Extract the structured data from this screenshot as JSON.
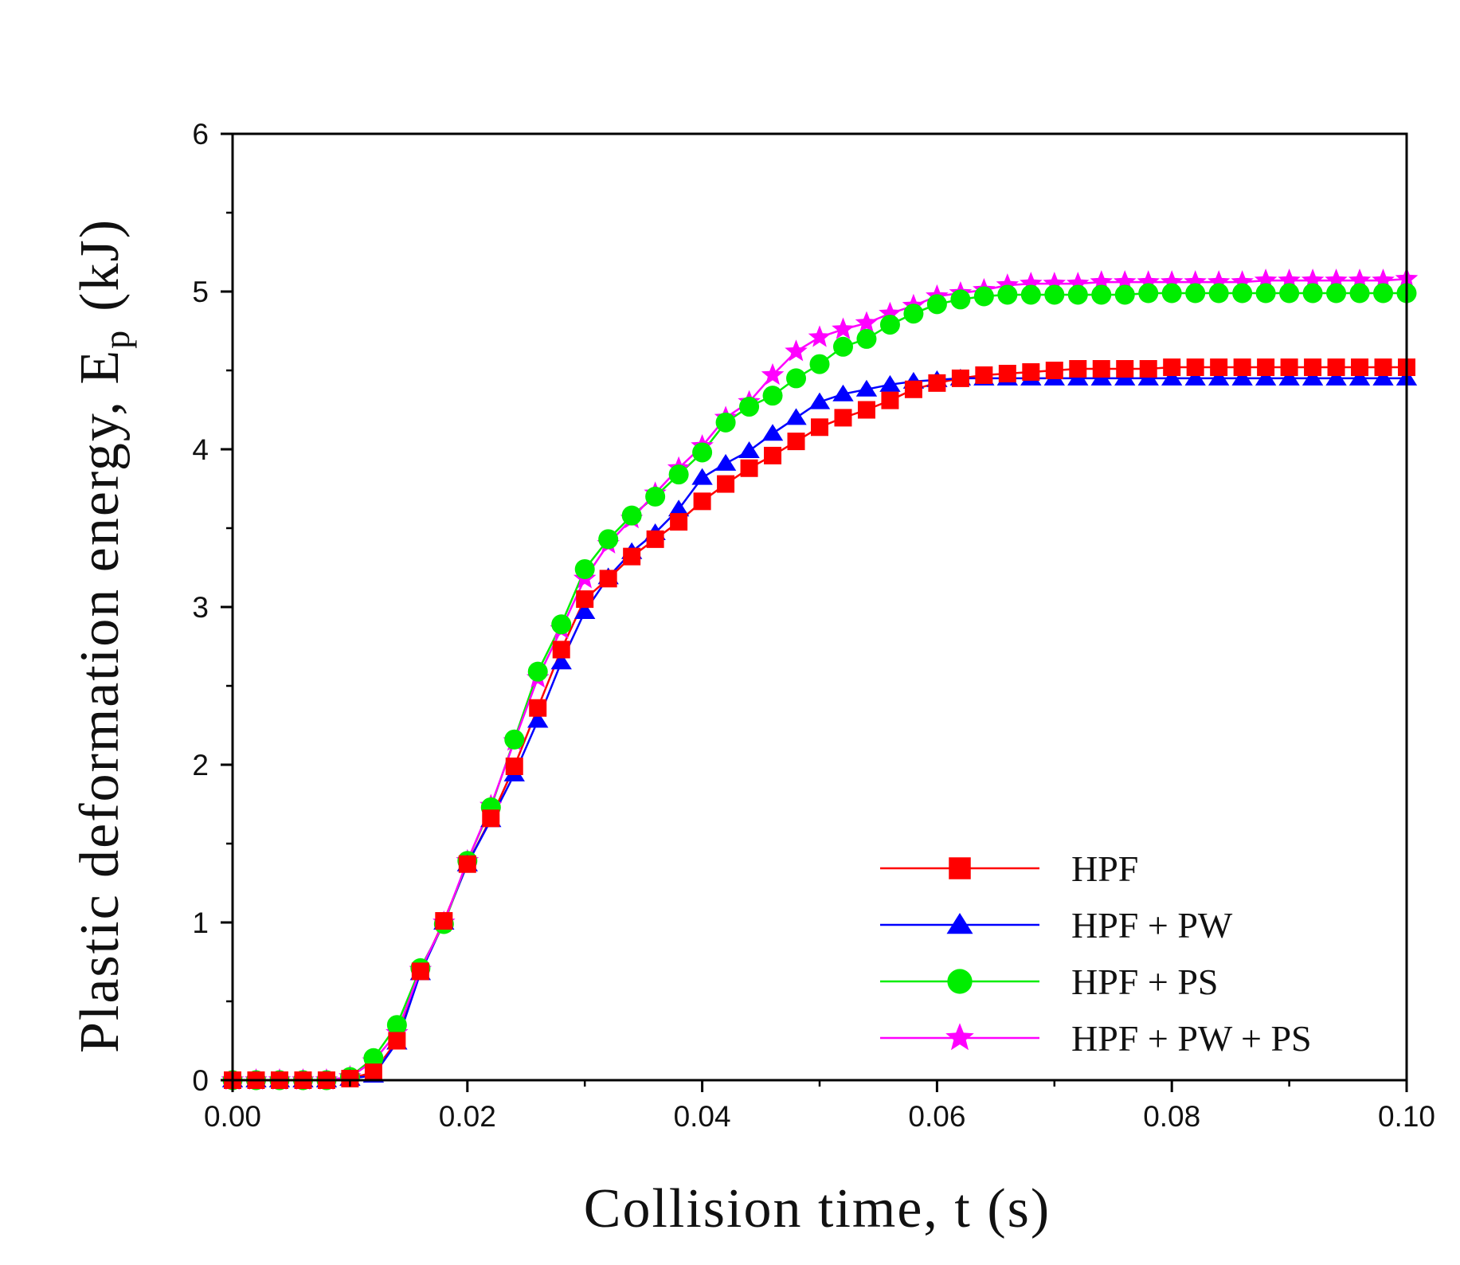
{
  "chart_data": {
    "type": "scatter",
    "title": "",
    "xlabel": "Collision time, t (s)",
    "ylabel_main": "Plastic deformation energy, E",
    "ylabel_sub": "p",
    "ylabel_unit": "(kJ)",
    "xlim": [
      0,
      0.1
    ],
    "ylim": [
      0,
      6
    ],
    "xticks": [
      0,
      0.02,
      0.04,
      0.06,
      0.08,
      0.1
    ],
    "xtick_labels": [
      "0.00",
      "0.02",
      "0.04",
      "0.06",
      "0.08",
      "0.10"
    ],
    "yticks": [
      0,
      1,
      2,
      3,
      4,
      5,
      6
    ],
    "ytick_labels": [
      "0",
      "1",
      "2",
      "3",
      "4",
      "5",
      "6"
    ],
    "grid": false,
    "legend_position": "bottom-right",
    "x": [
      0,
      0.002,
      0.004,
      0.006,
      0.008,
      0.01,
      0.012,
      0.014,
      0.016,
      0.018,
      0.02,
      0.022,
      0.024,
      0.026,
      0.028,
      0.03,
      0.032,
      0.034,
      0.036,
      0.038,
      0.04,
      0.042,
      0.044,
      0.046,
      0.048,
      0.05,
      0.052,
      0.054,
      0.056,
      0.058,
      0.06,
      0.062,
      0.064,
      0.066,
      0.068,
      0.07,
      0.072,
      0.074,
      0.076,
      0.078,
      0.08,
      0.082,
      0.084,
      0.086,
      0.088,
      0.09,
      0.092,
      0.094,
      0.096,
      0.098,
      0.1
    ],
    "series": [
      {
        "name": "HPF",
        "color": "#ff0000",
        "marker": "square",
        "values": [
          0,
          0,
          0,
          0,
          0,
          0.01,
          0.05,
          0.25,
          0.69,
          1.01,
          1.37,
          1.66,
          1.99,
          2.36,
          2.73,
          3.05,
          3.18,
          3.32,
          3.43,
          3.54,
          3.67,
          3.78,
          3.88,
          3.96,
          4.05,
          4.14,
          4.2,
          4.25,
          4.31,
          4.38,
          4.42,
          4.45,
          4.47,
          4.48,
          4.49,
          4.5,
          4.51,
          4.51,
          4.51,
          4.51,
          4.52,
          4.52,
          4.52,
          4.52,
          4.52,
          4.52,
          4.52,
          4.52,
          4.52,
          4.52,
          4.52
        ]
      },
      {
        "name": "HPF + PW",
        "color": "#0000ff",
        "marker": "triangle",
        "values": [
          0,
          0,
          0,
          0,
          0,
          0.01,
          0.03,
          0.24,
          0.68,
          1.0,
          1.37,
          1.65,
          1.94,
          2.28,
          2.65,
          2.97,
          3.19,
          3.35,
          3.47,
          3.62,
          3.82,
          3.91,
          3.99,
          4.1,
          4.2,
          4.3,
          4.35,
          4.38,
          4.41,
          4.43,
          4.44,
          4.45,
          4.45,
          4.45,
          4.45,
          4.45,
          4.45,
          4.45,
          4.45,
          4.45,
          4.45,
          4.45,
          4.45,
          4.45,
          4.45,
          4.45,
          4.45,
          4.45,
          4.45,
          4.45,
          4.45
        ]
      },
      {
        "name": "HPF + PS",
        "color": "#00ee00",
        "marker": "circle",
        "values": [
          0,
          0,
          0,
          0,
          0,
          0.02,
          0.14,
          0.35,
          0.71,
          0.99,
          1.39,
          1.73,
          2.16,
          2.59,
          2.89,
          3.24,
          3.43,
          3.58,
          3.7,
          3.84,
          3.98,
          4.17,
          4.27,
          4.34,
          4.45,
          4.54,
          4.65,
          4.7,
          4.79,
          4.86,
          4.92,
          4.95,
          4.97,
          4.98,
          4.98,
          4.98,
          4.98,
          4.98,
          4.98,
          4.99,
          4.99,
          4.99,
          4.99,
          4.99,
          4.99,
          4.99,
          4.99,
          4.99,
          4.99,
          4.99,
          4.99
        ]
      },
      {
        "name": "HPF + PW + PS",
        "color": "#ff00ff",
        "marker": "star",
        "values": [
          0,
          0,
          0,
          0,
          0,
          0.02,
          0.12,
          0.3,
          0.7,
          1.0,
          1.39,
          1.74,
          2.15,
          2.55,
          2.86,
          3.18,
          3.4,
          3.56,
          3.72,
          3.88,
          4.02,
          4.2,
          4.3,
          4.47,
          4.62,
          4.71,
          4.76,
          4.8,
          4.86,
          4.91,
          4.97,
          4.99,
          5.01,
          5.04,
          5.05,
          5.05,
          5.05,
          5.06,
          5.06,
          5.06,
          5.06,
          5.06,
          5.06,
          5.06,
          5.07,
          5.07,
          5.07,
          5.07,
          5.07,
          5.07,
          5.08
        ]
      }
    ]
  }
}
